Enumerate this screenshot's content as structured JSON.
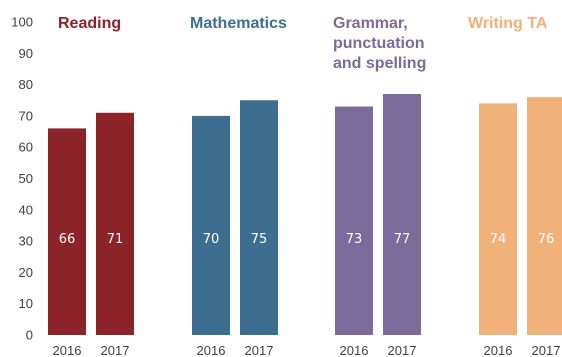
{
  "chart_data": {
    "type": "bar",
    "ylim": [
      0,
      100
    ],
    "yticks": [
      0,
      10,
      20,
      30,
      40,
      50,
      60,
      70,
      80,
      90,
      100
    ],
    "groups": [
      {
        "title": "Reading",
        "color": "#8b2328",
        "bars": [
          {
            "category": "2016",
            "value": 66,
            "label": "66"
          },
          {
            "category": "2017",
            "value": 71,
            "label": "71"
          }
        ]
      },
      {
        "title": "Mathematics",
        "color": "#3d6e8f",
        "bars": [
          {
            "category": "2016",
            "value": 70,
            "label": "70"
          },
          {
            "category": "2017",
            "value": 75,
            "label": "75"
          }
        ]
      },
      {
        "title": "Grammar,\npunctuation\nand spelling",
        "color": "#7b6b9b",
        "bars": [
          {
            "category": "2016",
            "value": 73,
            "label": "73"
          },
          {
            "category": "2017",
            "value": 77,
            "label": "77"
          }
        ]
      },
      {
        "title": "Writing TA",
        "color": "#f0b27a",
        "bars": [
          {
            "category": "2016",
            "value": 74,
            "label": "74"
          },
          {
            "category": "2017",
            "value": 76,
            "label": "76"
          }
        ]
      }
    ]
  }
}
